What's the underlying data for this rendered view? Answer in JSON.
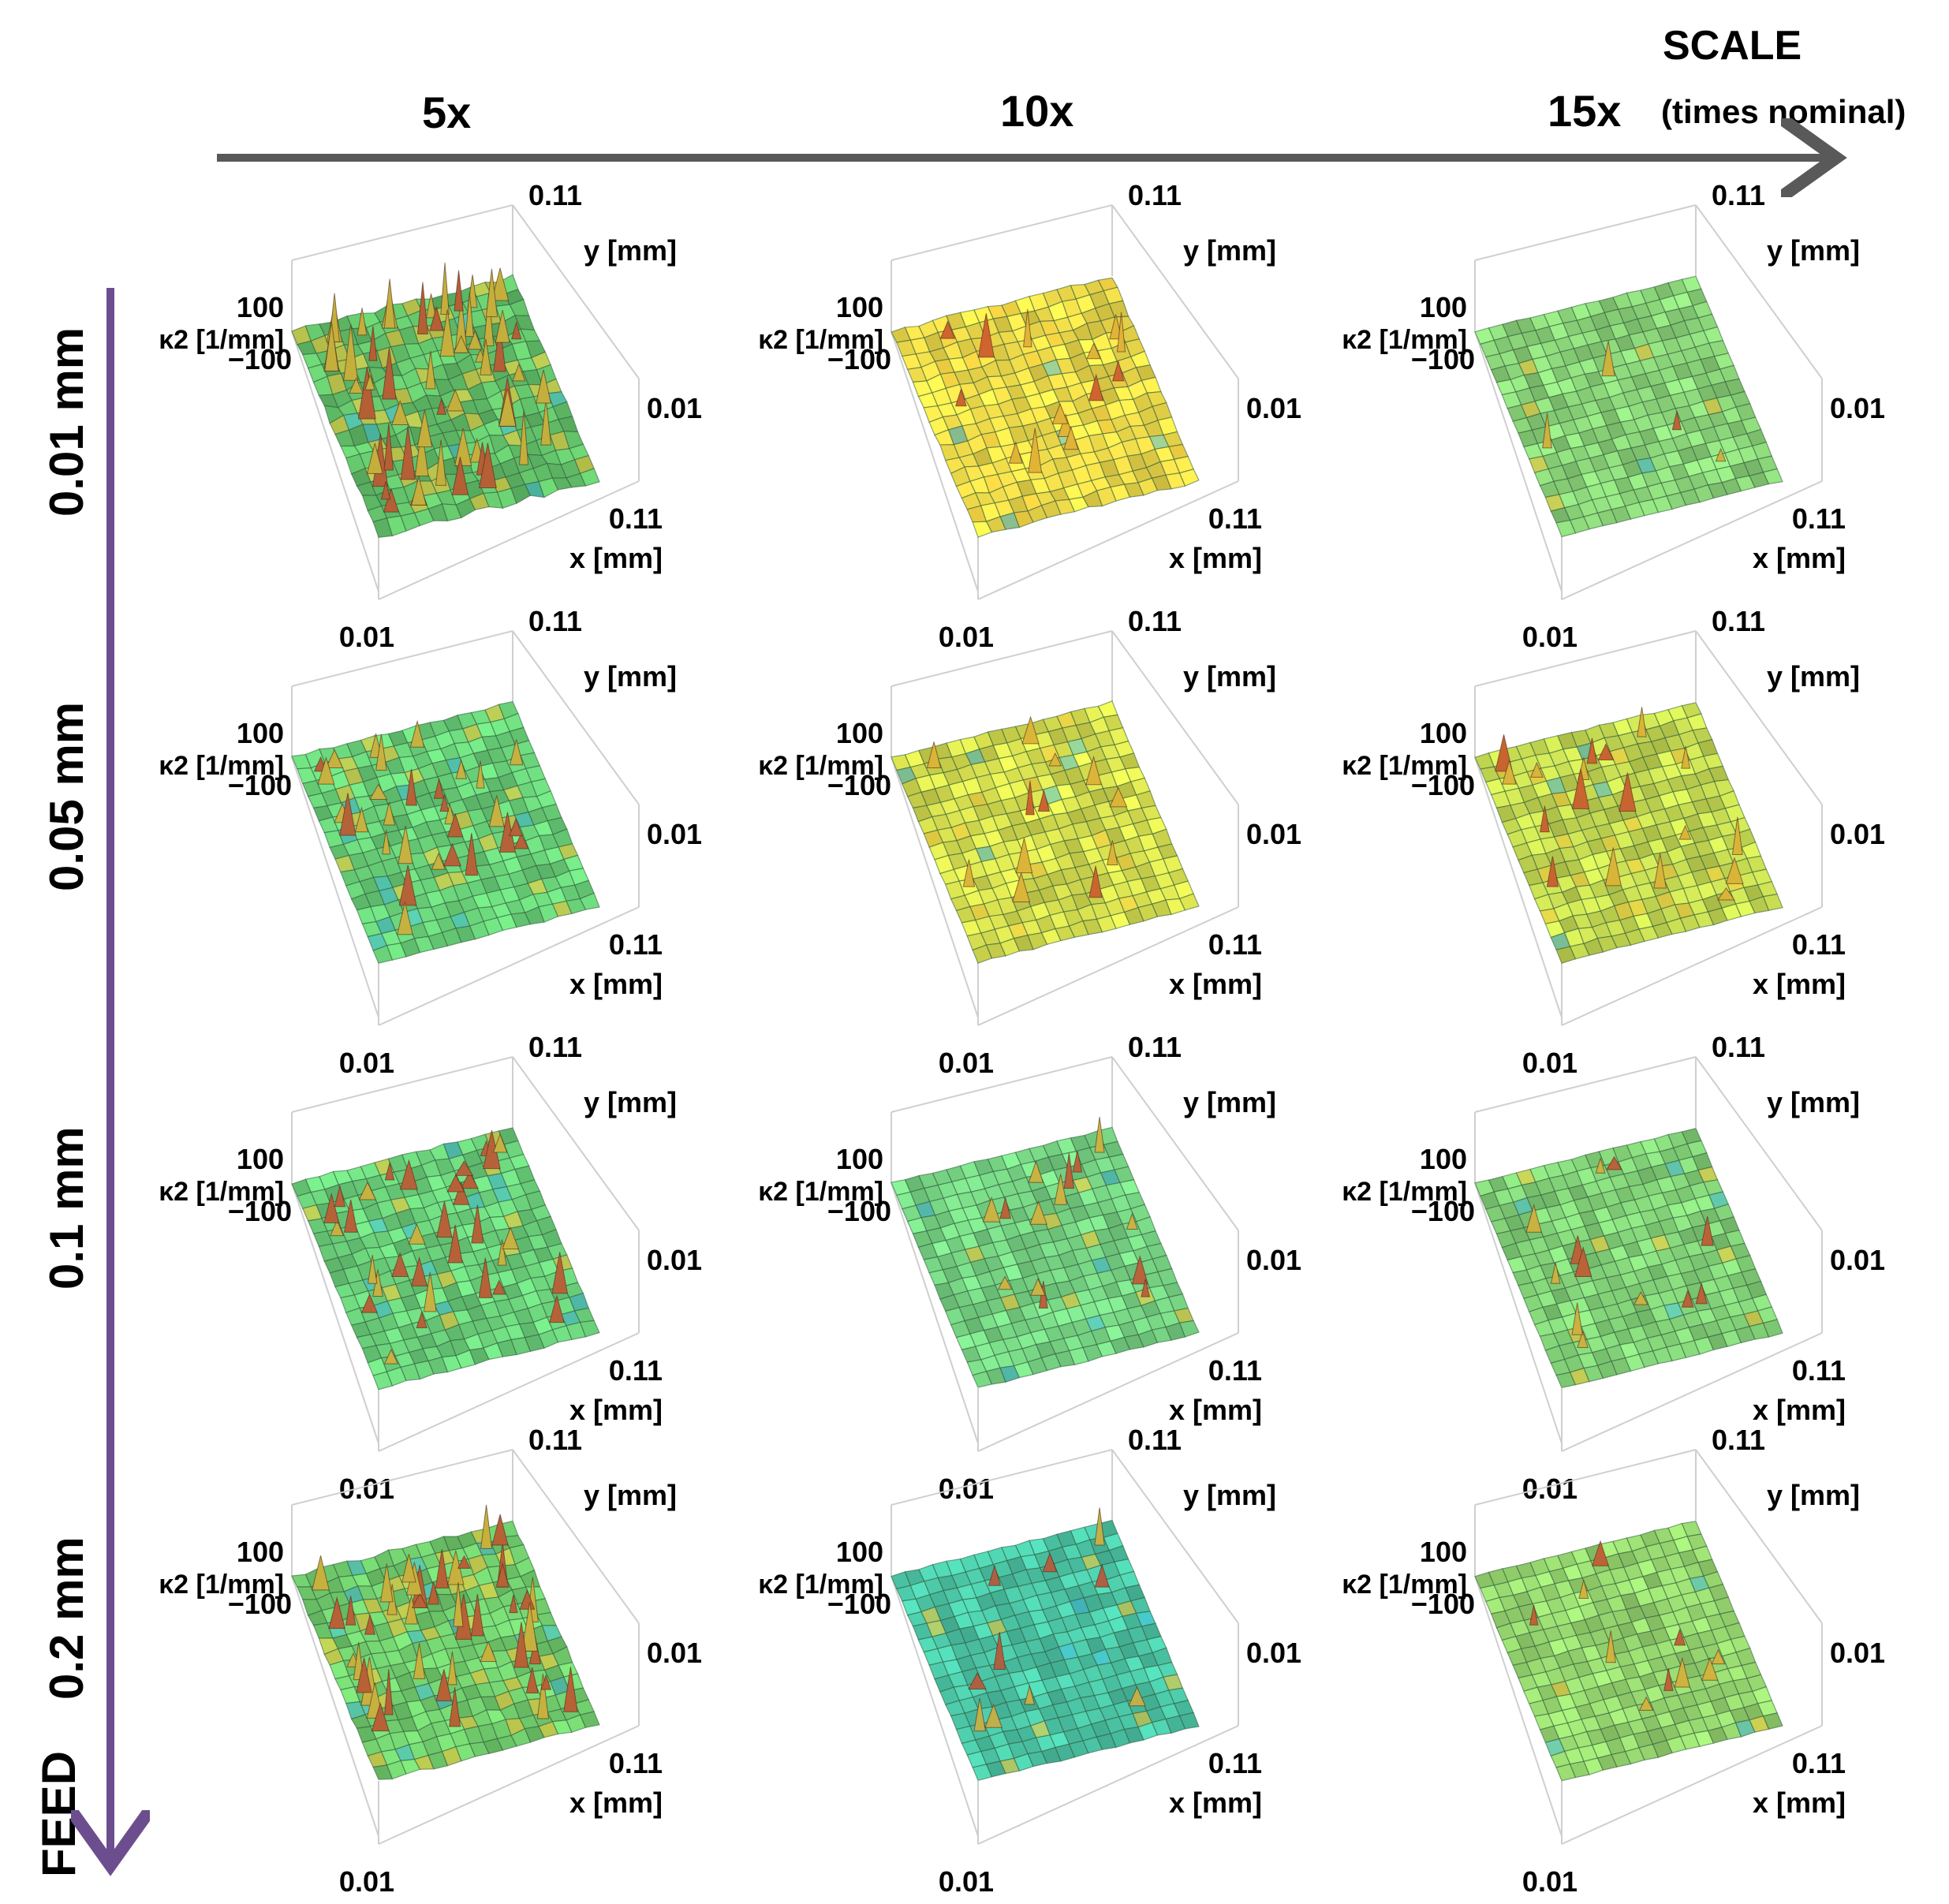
{
  "chart_data": {
    "type": "3d-surface-grid",
    "scale_axis": {
      "title": "SCALE",
      "subtitle": "(times nominal)"
    },
    "feed_axis": {
      "title": "FEED"
    },
    "columns": [
      "5x",
      "10x",
      "15x"
    ],
    "rows": [
      "0.01 mm",
      "0.05 mm",
      "0.1 mm",
      "0.2 mm"
    ],
    "panel_axes": {
      "z_label": "κ2 [1/mm]",
      "z_ticks": [
        "100",
        "−100"
      ],
      "y_label": "y [mm]",
      "y_ticks": [
        "0.11",
        "0.01"
      ],
      "x_label": "x [mm]",
      "x_ticks": [
        "0.11",
        "0.01"
      ],
      "x_range": [
        0.01,
        0.11
      ],
      "y_range": [
        0.01,
        0.11
      ],
      "z_range": [
        -100,
        100
      ]
    },
    "panels": [
      {
        "row": 0,
        "col": 0,
        "base_color": "#63c26a",
        "spikes": 60,
        "roughness": 0.55
      },
      {
        "row": 0,
        "col": 1,
        "base_color": "#f0dc4a",
        "spikes": 14,
        "roughness": 0.35
      },
      {
        "row": 0,
        "col": 2,
        "base_color": "#8cd67a",
        "spikes": 4,
        "roughness": 0.12
      },
      {
        "row": 1,
        "col": 0,
        "base_color": "#6ad37a",
        "spikes": 30,
        "roughness": 0.25
      },
      {
        "row": 1,
        "col": 1,
        "base_color": "#d7df4f",
        "spikes": 12,
        "roughness": 0.2
      },
      {
        "row": 1,
        "col": 2,
        "base_color": "#c7db52",
        "spikes": 18,
        "roughness": 0.2
      },
      {
        "row": 2,
        "col": 0,
        "base_color": "#6cd37c",
        "spikes": 32,
        "roughness": 0.25
      },
      {
        "row": 2,
        "col": 1,
        "base_color": "#78d685",
        "spikes": 14,
        "roughness": 0.15
      },
      {
        "row": 2,
        "col": 2,
        "base_color": "#84d479",
        "spikes": 12,
        "roughness": 0.12
      },
      {
        "row": 3,
        "col": 0,
        "base_color": "#72cf6e",
        "spikes": 45,
        "roughness": 0.4
      },
      {
        "row": 3,
        "col": 1,
        "base_color": "#4cc8a8",
        "spikes": 10,
        "roughness": 0.18
      },
      {
        "row": 3,
        "col": 2,
        "base_color": "#98d870",
        "spikes": 10,
        "roughness": 0.12
      }
    ]
  }
}
